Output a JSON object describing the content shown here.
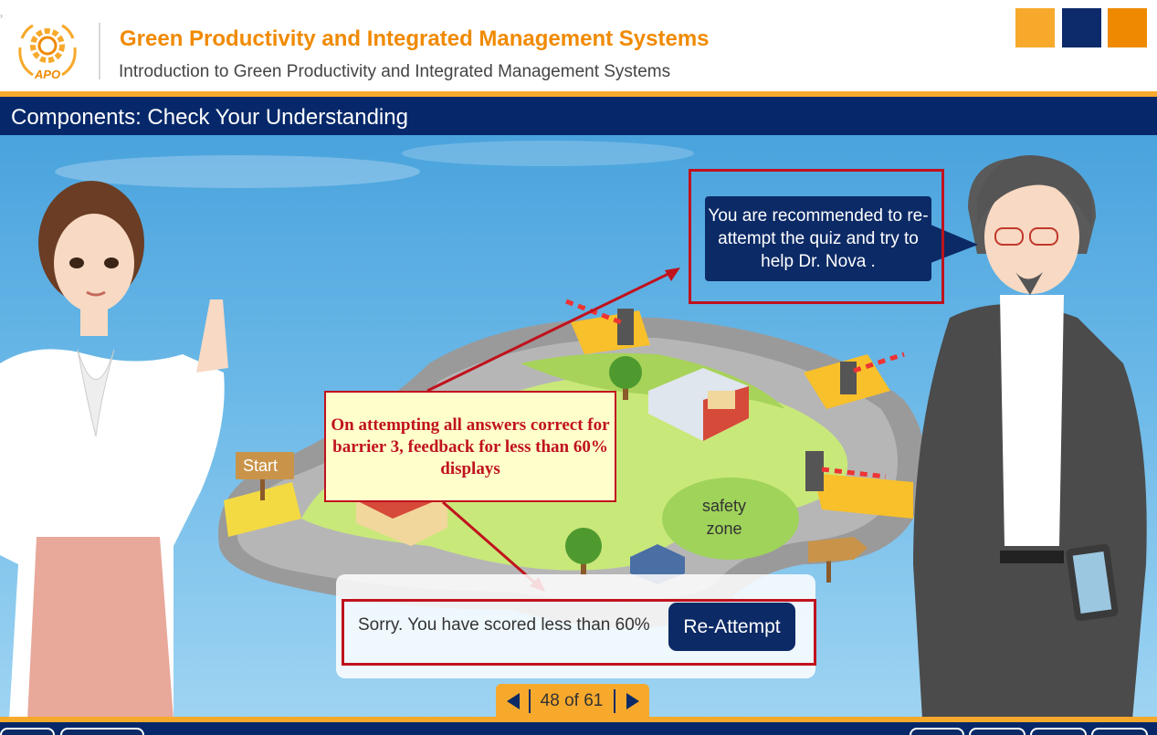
{
  "header": {
    "logo_text": "APO",
    "course_title": "Green Productivity and Integrated Management Systems",
    "course_subtitle": "Introduction to Green Productivity and Integrated Management Systems",
    "color_blocks": [
      "#f7a92c",
      "#0d2a6b",
      "#ef8a00"
    ]
  },
  "page": {
    "title": "Components: Check Your Understanding"
  },
  "scene": {
    "speech_bubble": "You are recommended to re-attempt the quiz and try to help Dr. Nova .",
    "start_sign": "Start",
    "safety_zone_label": "safety zone",
    "annotation": "On attempting all answers correct for barrier 3, feedback for less than 60% displays"
  },
  "feedback": {
    "message": "Sorry. You have scored less than 60%",
    "button_label": "Re-Attempt"
  },
  "pager": {
    "label": "48 of 61",
    "current": 48,
    "total": 61
  },
  "colors": {
    "accent_orange": "#f7a92c",
    "brand_navy": "#06286a",
    "annotation_red": "#c0121d",
    "title_orange": "#f08a00"
  }
}
